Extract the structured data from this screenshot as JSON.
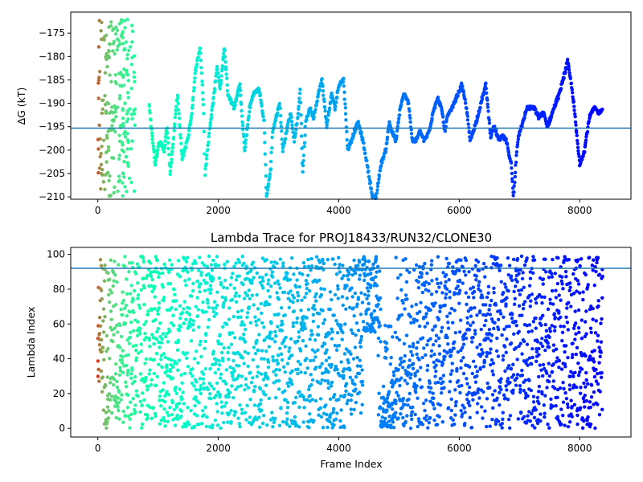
{
  "chart_data": [
    {
      "type": "scatter",
      "title": "",
      "xlabel": "",
      "ylabel": "ΔG (kT)",
      "xlim": [
        -450,
        8850
      ],
      "ylim": [
        -210.5,
        -170.5
      ],
      "xticks": [
        0,
        2000,
        4000,
        6000,
        8000
      ],
      "yticks": [
        -210,
        -205,
        -200,
        -195,
        -190,
        -185,
        -180,
        -175
      ],
      "xtick_labels": [
        "0",
        "2000",
        "4000",
        "6000",
        "8000"
      ],
      "ytick_labels": [
        "−210",
        "−205",
        "−200",
        "−195",
        "−190",
        "−185",
        "−180",
        "−175"
      ],
      "hline": {
        "y": -195.3,
        "color": "#1f77b4"
      },
      "colormap": "rainbow (reversed with frame index: red early, violet late)",
      "grid": false,
      "trace_anchors": [
        [
          850,
          -190
        ],
        [
          950,
          -203
        ],
        [
          1020,
          -198
        ],
        [
          1100,
          -200
        ],
        [
          1150,
          -195
        ],
        [
          1200,
          -205
        ],
        [
          1260,
          -197
        ],
        [
          1320,
          -188
        ],
        [
          1400,
          -202
        ],
        [
          1500,
          -197
        ],
        [
          1560,
          -192
        ],
        [
          1620,
          -183
        ],
        [
          1700,
          -178
        ],
        [
          1760,
          -192
        ],
        [
          1780,
          -205
        ],
        [
          1860,
          -195
        ],
        [
          1930,
          -188
        ],
        [
          1980,
          -182
        ],
        [
          2030,
          -187
        ],
        [
          2100,
          -178
        ],
        [
          2160,
          -188
        ],
        [
          2260,
          -191
        ],
        [
          2360,
          -186
        ],
        [
          2400,
          -194
        ],
        [
          2440,
          -200
        ],
        [
          2520,
          -191
        ],
        [
          2580,
          -188
        ],
        [
          2680,
          -187
        ],
        [
          2760,
          -194
        ],
        [
          2800,
          -210
        ],
        [
          2870,
          -204
        ],
        [
          2900,
          -196
        ],
        [
          2960,
          -193
        ],
        [
          3020,
          -190
        ],
        [
          3070,
          -200
        ],
        [
          3130,
          -196
        ],
        [
          3200,
          -192
        ],
        [
          3260,
          -198
        ],
        [
          3320,
          -193
        ],
        [
          3360,
          -187
        ],
        [
          3400,
          -205
        ],
        [
          3450,
          -194
        ],
        [
          3520,
          -191
        ],
        [
          3580,
          -193
        ],
        [
          3660,
          -188
        ],
        [
          3720,
          -185
        ],
        [
          3800,
          -195
        ],
        [
          3880,
          -188
        ],
        [
          3940,
          -191
        ],
        [
          4000,
          -186
        ],
        [
          4080,
          -185
        ],
        [
          4150,
          -200
        ],
        [
          4260,
          -196
        ],
        [
          4320,
          -194
        ],
        [
          4400,
          -198
        ],
        [
          4470,
          -203
        ],
        [
          4560,
          -210
        ],
        [
          4620,
          -210
        ],
        [
          4700,
          -203
        ],
        [
          4780,
          -200
        ],
        [
          4840,
          -194
        ],
        [
          4880,
          -196
        ],
        [
          4950,
          -198
        ],
        [
          5020,
          -191
        ],
        [
          5080,
          -188
        ],
        [
          5160,
          -190
        ],
        [
          5220,
          -198
        ],
        [
          5280,
          -198
        ],
        [
          5350,
          -196
        ],
        [
          5420,
          -198
        ],
        [
          5500,
          -196
        ],
        [
          5580,
          -191
        ],
        [
          5650,
          -189
        ],
        [
          5720,
          -192
        ],
        [
          5760,
          -196
        ],
        [
          5800,
          -193
        ],
        [
          5880,
          -191
        ],
        [
          5980,
          -188
        ],
        [
          6040,
          -186
        ],
        [
          6120,
          -191
        ],
        [
          6180,
          -198
        ],
        [
          6280,
          -194
        ],
        [
          6360,
          -190
        ],
        [
          6440,
          -186
        ],
        [
          6520,
          -197
        ],
        [
          6580,
          -195
        ],
        [
          6660,
          -198
        ],
        [
          6720,
          -197
        ],
        [
          6780,
          -198
        ],
        [
          6860,
          -203
        ],
        [
          6900,
          -210
        ],
        [
          6960,
          -199
        ],
        [
          7000,
          -196
        ],
        [
          7060,
          -194
        ],
        [
          7120,
          -191
        ],
        [
          7240,
          -191
        ],
        [
          7320,
          -193
        ],
        [
          7400,
          -192
        ],
        [
          7460,
          -195
        ],
        [
          7520,
          -193
        ],
        [
          7600,
          -190
        ],
        [
          7660,
          -188
        ],
        [
          7700,
          -186
        ],
        [
          7760,
          -183
        ],
        [
          7800,
          -181
        ],
        [
          7860,
          -186
        ],
        [
          7900,
          -190
        ],
        [
          7960,
          -198
        ],
        [
          8000,
          -203
        ],
        [
          8080,
          -200
        ],
        [
          8160,
          -193
        ],
        [
          8240,
          -191
        ],
        [
          8320,
          -192
        ],
        [
          8380,
          -191
        ]
      ],
      "early_cloud": {
        "x_range": [
          0,
          620
        ],
        "y_range": [
          -210,
          -172
        ]
      }
    },
    {
      "type": "scatter",
      "title": "Lambda Trace for PROJ18433/RUN32/CLONE30",
      "xlabel": "Frame Index",
      "ylabel": "Lambda Index",
      "xlim": [
        -450,
        8850
      ],
      "ylim": [
        -5,
        104
      ],
      "xticks": [
        0,
        2000,
        4000,
        6000,
        8000
      ],
      "yticks": [
        0,
        20,
        40,
        60,
        80,
        100
      ],
      "xtick_labels": [
        "0",
        "2000",
        "4000",
        "6000",
        "8000"
      ],
      "ytick_labels": [
        "0",
        "20",
        "40",
        "60",
        "80",
        "100"
      ],
      "hline": {
        "y": 92,
        "color": "#1f77b4"
      },
      "colormap": "rainbow (reversed with frame index: red early, violet late)",
      "grid": false,
      "value_range": [
        0,
        99
      ],
      "frames": 8400,
      "dense_region_4400_4650": [
        55,
        99
      ],
      "diagonal_band": {
        "x_range": [
          4700,
          5100
        ],
        "y_range": [
          5,
          55
        ]
      }
    }
  ]
}
